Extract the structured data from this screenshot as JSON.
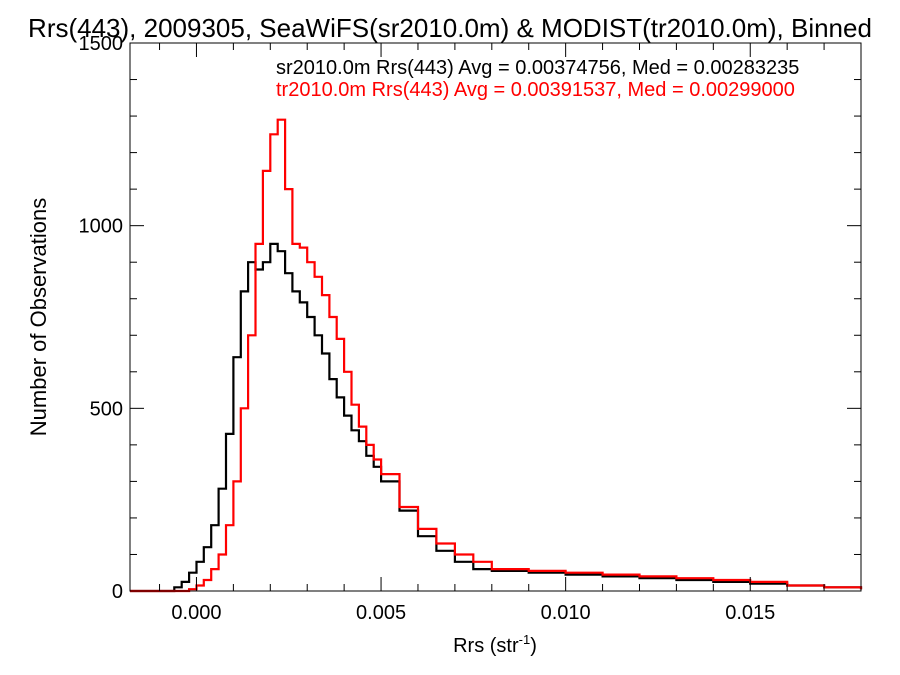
{
  "chart_data": {
    "type": "line",
    "title": "Rrs(443), 2009305, SeaWiFS(sr2010.0m) & MODIST(tr2010.0m), Binned",
    "xlabel": "Rrs (str",
    "xlabel_sup": "-1",
    "xlabel_end": ")",
    "ylabel": "Number of Observations",
    "xlim": [
      -0.0018,
      0.018
    ],
    "ylim": [
      0,
      1500
    ],
    "xticks": [
      0.0,
      0.005,
      0.01,
      0.015
    ],
    "xtick_labels": [
      "0.000",
      "0.005",
      "0.010",
      "0.015"
    ],
    "yticks": [
      0,
      500,
      1000,
      1500
    ],
    "ytick_labels": [
      "0",
      "500",
      "1000",
      "1500"
    ],
    "grid": false,
    "legend_placement": "top",
    "annotations": [
      {
        "text": "sr2010.0m Rrs(443) Avg = 0.00374756, Med = 0.00283235",
        "color": "#000000"
      },
      {
        "text": "tr2010.0m Rrs(443) Avg = 0.00391537, Med = 0.00299000",
        "color": "#ff0000"
      }
    ],
    "series": [
      {
        "color": "#000000",
        "x": [
          -0.0018,
          -0.0009,
          -0.0006,
          -0.0004,
          -0.0002,
          0.0,
          0.0002,
          0.0004,
          0.0006,
          0.0008,
          0.001,
          0.0012,
          0.0014,
          0.0016,
          0.0018,
          0.002,
          0.0022,
          0.0024,
          0.0026,
          0.0028,
          0.003,
          0.0032,
          0.0034,
          0.0036,
          0.0038,
          0.004,
          0.0042,
          0.0044,
          0.0046,
          0.0048,
          0.005,
          0.0055,
          0.006,
          0.0065,
          0.007,
          0.0075,
          0.008,
          0.009,
          0.01,
          0.011,
          0.012,
          0.013,
          0.014,
          0.015,
          0.016,
          0.017,
          0.018
        ],
        "y": [
          0,
          0,
          10,
          25,
          50,
          80,
          120,
          180,
          280,
          430,
          640,
          820,
          900,
          880,
          900,
          950,
          930,
          870,
          820,
          790,
          750,
          700,
          650,
          580,
          530,
          480,
          440,
          410,
          370,
          340,
          300,
          220,
          150,
          110,
          80,
          60,
          55,
          50,
          45,
          40,
          35,
          30,
          25,
          20,
          15,
          10,
          5
        ]
      },
      {
        "color": "#ff0000",
        "x": [
          -0.0018,
          -0.0005,
          -0.0002,
          0.0,
          0.0002,
          0.0004,
          0.0006,
          0.0008,
          0.001,
          0.0012,
          0.0014,
          0.0016,
          0.0018,
          0.002,
          0.0022,
          0.0024,
          0.0026,
          0.0028,
          0.003,
          0.0032,
          0.0034,
          0.0036,
          0.0038,
          0.004,
          0.0042,
          0.0044,
          0.0046,
          0.0048,
          0.005,
          0.0055,
          0.006,
          0.0065,
          0.007,
          0.0075,
          0.008,
          0.009,
          0.01,
          0.011,
          0.012,
          0.013,
          0.014,
          0.015,
          0.016,
          0.017,
          0.018
        ],
        "y": [
          0,
          0,
          5,
          15,
          30,
          60,
          100,
          180,
          300,
          500,
          700,
          950,
          1150,
          1250,
          1290,
          1100,
          950,
          940,
          900,
          860,
          810,
          750,
          690,
          600,
          510,
          450,
          400,
          360,
          320,
          230,
          170,
          130,
          100,
          80,
          60,
          55,
          50,
          45,
          40,
          35,
          30,
          25,
          15,
          10,
          5
        ]
      }
    ]
  }
}
